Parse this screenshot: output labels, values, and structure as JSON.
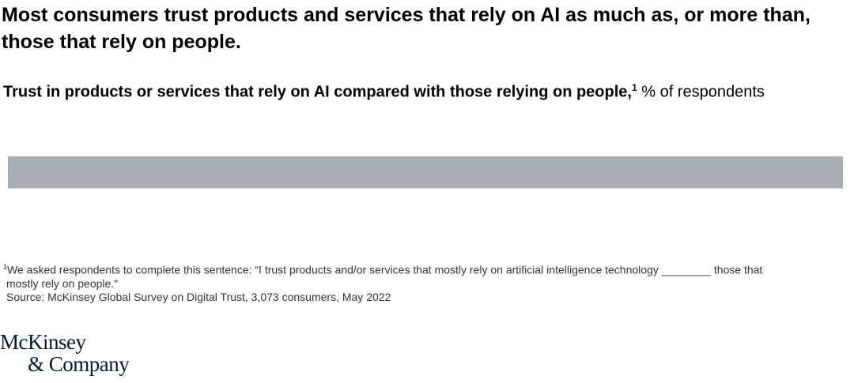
{
  "header": {
    "title": "Most consumers trust products and services that rely on AI as much as, or more than, those that rely on people."
  },
  "chart_data": {
    "type": "bar",
    "title": "Trust in products or services that rely on AI compared with those relying on people,",
    "title_footnote_mark": "1",
    "unit": "% of respondents",
    "categories": [],
    "series": [],
    "bar_color": "#a8aeb4"
  },
  "footer": {
    "note_mark": "1",
    "note_line1": "We asked respondents to complete this sentence: “I trust products and/or services that mostly rely on artificial intelligence technology ________ those that",
    "note_line2": "mostly rely on people.\"",
    "source": "Source: McKinsey Global Survey on Digital Trust, 3,073 consumers, May 2022"
  },
  "logo": {
    "line1": "McKinsey",
    "line2": "& Company"
  }
}
